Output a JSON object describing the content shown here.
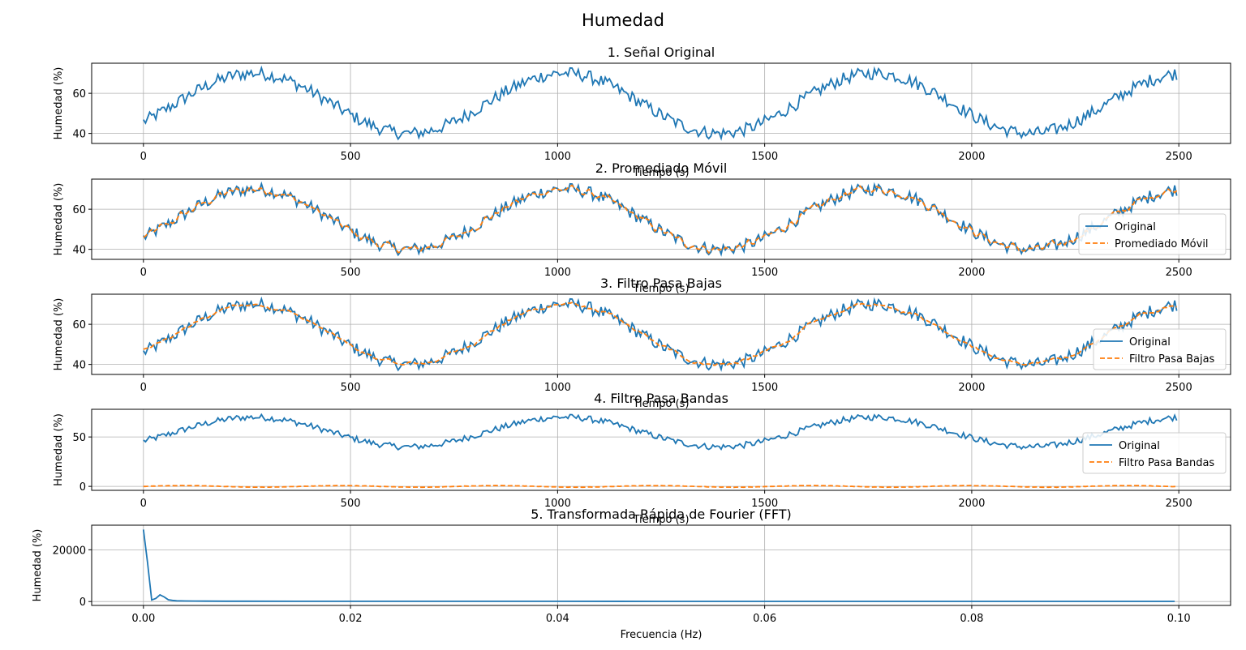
{
  "figure": {
    "title": "Humedad"
  },
  "chart_data": [
    {
      "type": "line",
      "title": "1. Señal Original",
      "xlabel": "Tiempo (s)",
      "ylabel": "Humedad (%)",
      "xlim": [
        -125,
        2625
      ],
      "ylim": [
        35,
        75
      ],
      "xticks": [
        0,
        500,
        1000,
        1500,
        2000,
        2500
      ],
      "yticks": [
        40,
        60
      ],
      "grid": true,
      "legend": null,
      "signal": {
        "mean": 55,
        "amplitude": 15,
        "period": 750,
        "noise": 2.0,
        "step": 5
      },
      "series": [
        {
          "kind": "original",
          "color": "#1f77b4",
          "dash": "solid"
        }
      ]
    },
    {
      "type": "line",
      "title": "2. Promediado Móvil",
      "xlabel": "Tiempo (s)",
      "ylabel": "Humedad (%)",
      "xlim": [
        -125,
        2625
      ],
      "ylim": [
        35,
        75
      ],
      "xticks": [
        0,
        500,
        1000,
        1500,
        2000,
        2500
      ],
      "yticks": [
        40,
        60
      ],
      "grid": true,
      "legend": "lower right",
      "signal": {
        "mean": 55,
        "amplitude": 15,
        "period": 750,
        "noise": 2.0,
        "step": 5
      },
      "series": [
        {
          "name": "Original",
          "kind": "original",
          "color": "#1f77b4",
          "dash": "solid"
        },
        {
          "name": "Promediado Móvil",
          "kind": "moving_average",
          "color": "#ff7f0e",
          "dash": "dashed"
        }
      ]
    },
    {
      "type": "line",
      "title": "3. Filtro Pasa Bajas",
      "xlabel": "Tiempo (s)",
      "ylabel": "Humedad (%)",
      "xlim": [
        -125,
        2625
      ],
      "ylim": [
        35,
        75
      ],
      "xticks": [
        0,
        500,
        1000,
        1500,
        2000,
        2500
      ],
      "yticks": [
        40,
        60
      ],
      "grid": true,
      "legend": "lower right",
      "signal": {
        "mean": 55,
        "amplitude": 15,
        "period": 750,
        "noise": 2.0,
        "step": 5
      },
      "series": [
        {
          "name": "Original",
          "kind": "original",
          "color": "#1f77b4",
          "dash": "solid"
        },
        {
          "name": "Filtro Pasa Bajas",
          "kind": "low_pass",
          "color": "#ff7f0e",
          "dash": "dashed"
        }
      ]
    },
    {
      "type": "line",
      "title": "4. Filtro Pasa Bandas",
      "xlabel": "Tiempo (s)",
      "ylabel": "Humedad (%)",
      "xlim": [
        -125,
        2625
      ],
      "ylim": [
        -4,
        78
      ],
      "xticks": [
        0,
        500,
        1000,
        1500,
        2000,
        2500
      ],
      "yticks": [
        0,
        50
      ],
      "grid": true,
      "legend": "center right",
      "signal": {
        "mean": 55,
        "amplitude": 15,
        "period": 750,
        "noise": 2.0,
        "step": 5
      },
      "series": [
        {
          "name": "Original",
          "kind": "original",
          "color": "#1f77b4",
          "dash": "solid"
        },
        {
          "name": "Filtro Pasa Bandas",
          "kind": "band_pass",
          "color": "#ff7f0e",
          "dash": "dashed"
        }
      ]
    },
    {
      "type": "line",
      "title": "5. Transformada Rápida de Fourier (FFT)",
      "xlabel": "Frecuencia (Hz)",
      "ylabel": "Humedad (%)",
      "xlim": [
        -0.005,
        0.105
      ],
      "ylim": [
        -1500,
        29500
      ],
      "xticks": [
        0.0,
        0.02,
        0.04,
        0.06,
        0.08,
        0.1
      ],
      "xticklabels": [
        "0.00",
        "0.02",
        "0.04",
        "0.06",
        "0.08",
        "0.10"
      ],
      "yticks": [
        0,
        20000
      ],
      "grid": true,
      "legend": null,
      "series": [
        {
          "kind": "fft",
          "color": "#1f77b4",
          "dash": "solid",
          "x": [
            0.0,
            0.0004,
            0.0008,
            0.0012,
            0.0016,
            0.002,
            0.0024,
            0.0028,
            0.0032,
            0.004,
            0.005,
            0.006,
            0.008,
            0.01,
            0.015,
            0.02,
            0.03,
            0.04,
            0.05,
            0.06,
            0.07,
            0.08,
            0.09,
            0.0996
          ],
          "y": [
            27800,
            15000,
            600,
            1200,
            2600,
            1800,
            700,
            450,
            300,
            220,
            180,
            160,
            140,
            130,
            110,
            100,
            90,
            85,
            80,
            80,
            78,
            75,
            72,
            70
          ]
        }
      ]
    }
  ]
}
